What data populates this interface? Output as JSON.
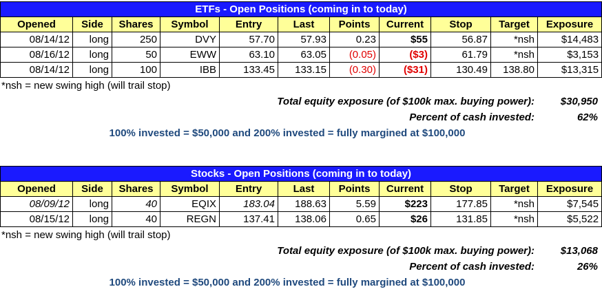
{
  "sections": [
    {
      "title": "ETFs - Open Positions (coming in to today)",
      "headers": [
        "Opened",
        "Side",
        "Shares",
        "Symbol",
        "Entry",
        "Last",
        "Points",
        "Current",
        "Stop",
        "Target",
        "Exposure"
      ],
      "rows": [
        [
          "08/14/12",
          "long",
          "250",
          "DVY",
          "57.70",
          "57.93",
          "0.23",
          "$55",
          "56.87",
          "*nsh",
          "$14,483"
        ],
        [
          "08/16/12",
          "long",
          "50",
          "EWW",
          "63.10",
          "63.05",
          "(0.05)",
          "($3)",
          "61.79",
          "*nsh",
          "$3,153"
        ],
        [
          "08/14/12",
          "long",
          "100",
          "IBB",
          "133.45",
          "133.15",
          "(0.30)",
          "($31)",
          "130.49",
          "138.80",
          "$13,315"
        ]
      ],
      "note": "*nsh = new swing high (will trail stop)",
      "summary": [
        {
          "label": "Total equity exposure (of $100k max. buying power):",
          "value": "$30,950"
        },
        {
          "label": "Percent of cash invested:",
          "value": "62%"
        }
      ],
      "footer": "100% invested = $50,000 and 200% invested = fully margined at $100,000"
    },
    {
      "title": "Stocks - Open Positions (coming in to today)",
      "headers": [
        "Opened",
        "Side",
        "Shares",
        "Symbol",
        "Entry",
        "Last",
        "Points",
        "Current",
        "Stop",
        "Target",
        "Exposure"
      ],
      "rows": [
        [
          "08/09/12",
          "long",
          "40",
          "EQIX",
          "183.04",
          "188.63",
          "5.59",
          "$223",
          "177.85",
          "*nsh",
          "$7,545"
        ],
        [
          "08/15/12",
          "long",
          "40",
          "REGN",
          "137.41",
          "138.06",
          "0.65",
          "$26",
          "131.85",
          "*nsh",
          "$5,522"
        ]
      ],
      "note": "*nsh = new swing high (will trail stop)",
      "summary": [
        {
          "label": "Total equity exposure (of $100k max. buying power):",
          "value": "$13,068"
        },
        {
          "label": "Percent of cash invested:",
          "value": "26%"
        }
      ],
      "footer": "100% invested = $50,000 and 200% invested = fully margined at $100,000"
    }
  ]
}
